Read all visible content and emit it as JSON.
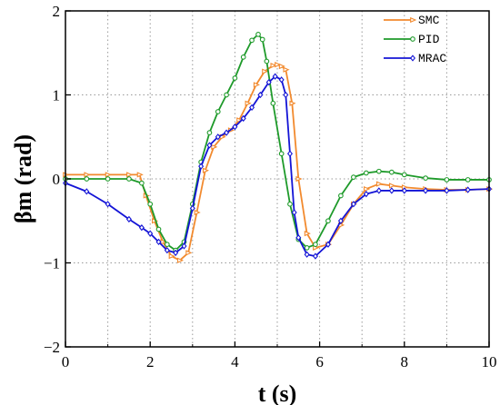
{
  "chart_data": {
    "type": "line",
    "xlabel": "t (s)",
    "ylabel": "βm (rad)",
    "xlim": [
      0,
      10
    ],
    "ylim": [
      -2,
      2
    ],
    "x_ticks": [
      0,
      2,
      4,
      6,
      8,
      10
    ],
    "y_ticks": [
      -2,
      -1,
      0,
      1,
      2
    ],
    "grid": true,
    "legend_position": "top-right",
    "series": [
      {
        "name": "SMC",
        "color": "#f28a2e",
        "marker": "triangle-right",
        "x": [
          0,
          0.5,
          1.0,
          1.5,
          1.75,
          1.9,
          2.1,
          2.3,
          2.5,
          2.7,
          2.9,
          3.1,
          3.3,
          3.5,
          3.7,
          3.9,
          4.1,
          4.3,
          4.5,
          4.7,
          4.9,
          5.0,
          5.1,
          5.2,
          5.35,
          5.5,
          5.7,
          5.9,
          6.2,
          6.5,
          6.8,
          7.1,
          7.4,
          7.7,
          8.0,
          8.5,
          9.0,
          9.5,
          10.0
        ],
        "values": [
          0.05,
          0.05,
          0.05,
          0.05,
          0.05,
          -0.2,
          -0.5,
          -0.75,
          -0.92,
          -0.97,
          -0.88,
          -0.4,
          0.1,
          0.38,
          0.5,
          0.58,
          0.7,
          0.9,
          1.12,
          1.28,
          1.35,
          1.36,
          1.34,
          1.3,
          0.9,
          0.0,
          -0.65,
          -0.82,
          -0.78,
          -0.55,
          -0.3,
          -0.12,
          -0.06,
          -0.08,
          -0.1,
          -0.12,
          -0.13,
          -0.13,
          -0.12
        ]
      },
      {
        "name": "PID",
        "color": "#1e9a2a",
        "marker": "circle",
        "x": [
          0,
          0.5,
          1.0,
          1.5,
          1.8,
          2.0,
          2.2,
          2.4,
          2.6,
          2.8,
          3.0,
          3.2,
          3.4,
          3.6,
          3.8,
          4.0,
          4.2,
          4.4,
          4.55,
          4.65,
          4.75,
          4.9,
          5.1,
          5.3,
          5.5,
          5.7,
          5.9,
          6.2,
          6.5,
          6.8,
          7.1,
          7.4,
          7.7,
          8.0,
          8.5,
          9.0,
          9.5,
          10.0
        ],
        "values": [
          0.0,
          0.0,
          0.0,
          0.0,
          -0.05,
          -0.3,
          -0.6,
          -0.78,
          -0.85,
          -0.75,
          -0.3,
          0.2,
          0.55,
          0.8,
          1.0,
          1.2,
          1.45,
          1.65,
          1.72,
          1.66,
          1.4,
          0.9,
          0.3,
          -0.3,
          -0.72,
          -0.82,
          -0.78,
          -0.5,
          -0.2,
          0.02,
          0.07,
          0.09,
          0.08,
          0.05,
          0.01,
          -0.01,
          -0.01,
          -0.01
        ]
      },
      {
        "name": "MRAC",
        "color": "#1414d6",
        "marker": "diamond",
        "x": [
          0,
          0.5,
          1.0,
          1.5,
          1.8,
          2.0,
          2.2,
          2.4,
          2.6,
          2.8,
          3.0,
          3.2,
          3.4,
          3.6,
          3.8,
          4.0,
          4.2,
          4.4,
          4.6,
          4.8,
          4.95,
          5.1,
          5.2,
          5.3,
          5.4,
          5.5,
          5.7,
          5.9,
          6.2,
          6.5,
          6.8,
          7.1,
          7.4,
          7.7,
          8.0,
          8.5,
          9.0,
          9.5,
          10.0
        ],
        "values": [
          -0.05,
          -0.15,
          -0.3,
          -0.48,
          -0.58,
          -0.65,
          -0.75,
          -0.85,
          -0.88,
          -0.8,
          -0.35,
          0.15,
          0.4,
          0.5,
          0.55,
          0.62,
          0.72,
          0.85,
          1.0,
          1.15,
          1.22,
          1.18,
          1.0,
          0.3,
          -0.4,
          -0.7,
          -0.9,
          -0.92,
          -0.78,
          -0.5,
          -0.3,
          -0.18,
          -0.14,
          -0.14,
          -0.14,
          -0.14,
          -0.14,
          -0.13,
          -0.12
        ]
      }
    ]
  }
}
